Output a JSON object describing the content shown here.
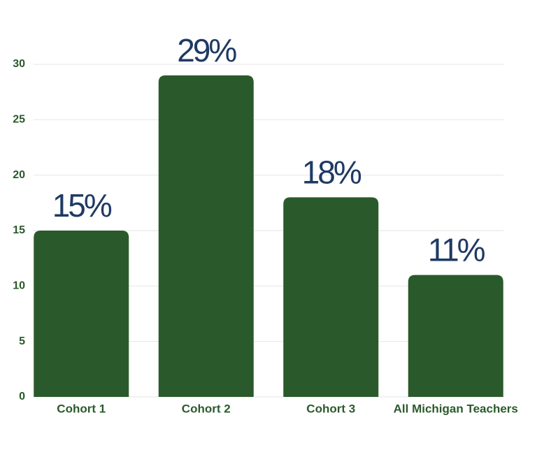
{
  "chart_data": {
    "type": "bar",
    "categories": [
      "Cohort 1",
      "Cohort 2",
      "Cohort 3",
      "All Michigan Teachers"
    ],
    "values": [
      15,
      29,
      18,
      11
    ],
    "value_labels": [
      "15%",
      "29%",
      "18%",
      "11%"
    ],
    "color": "#2a5a2b",
    "ylim": [
      0,
      30
    ],
    "yticks": [
      0,
      5,
      10,
      15,
      20,
      25,
      30
    ],
    "grid": true
  }
}
